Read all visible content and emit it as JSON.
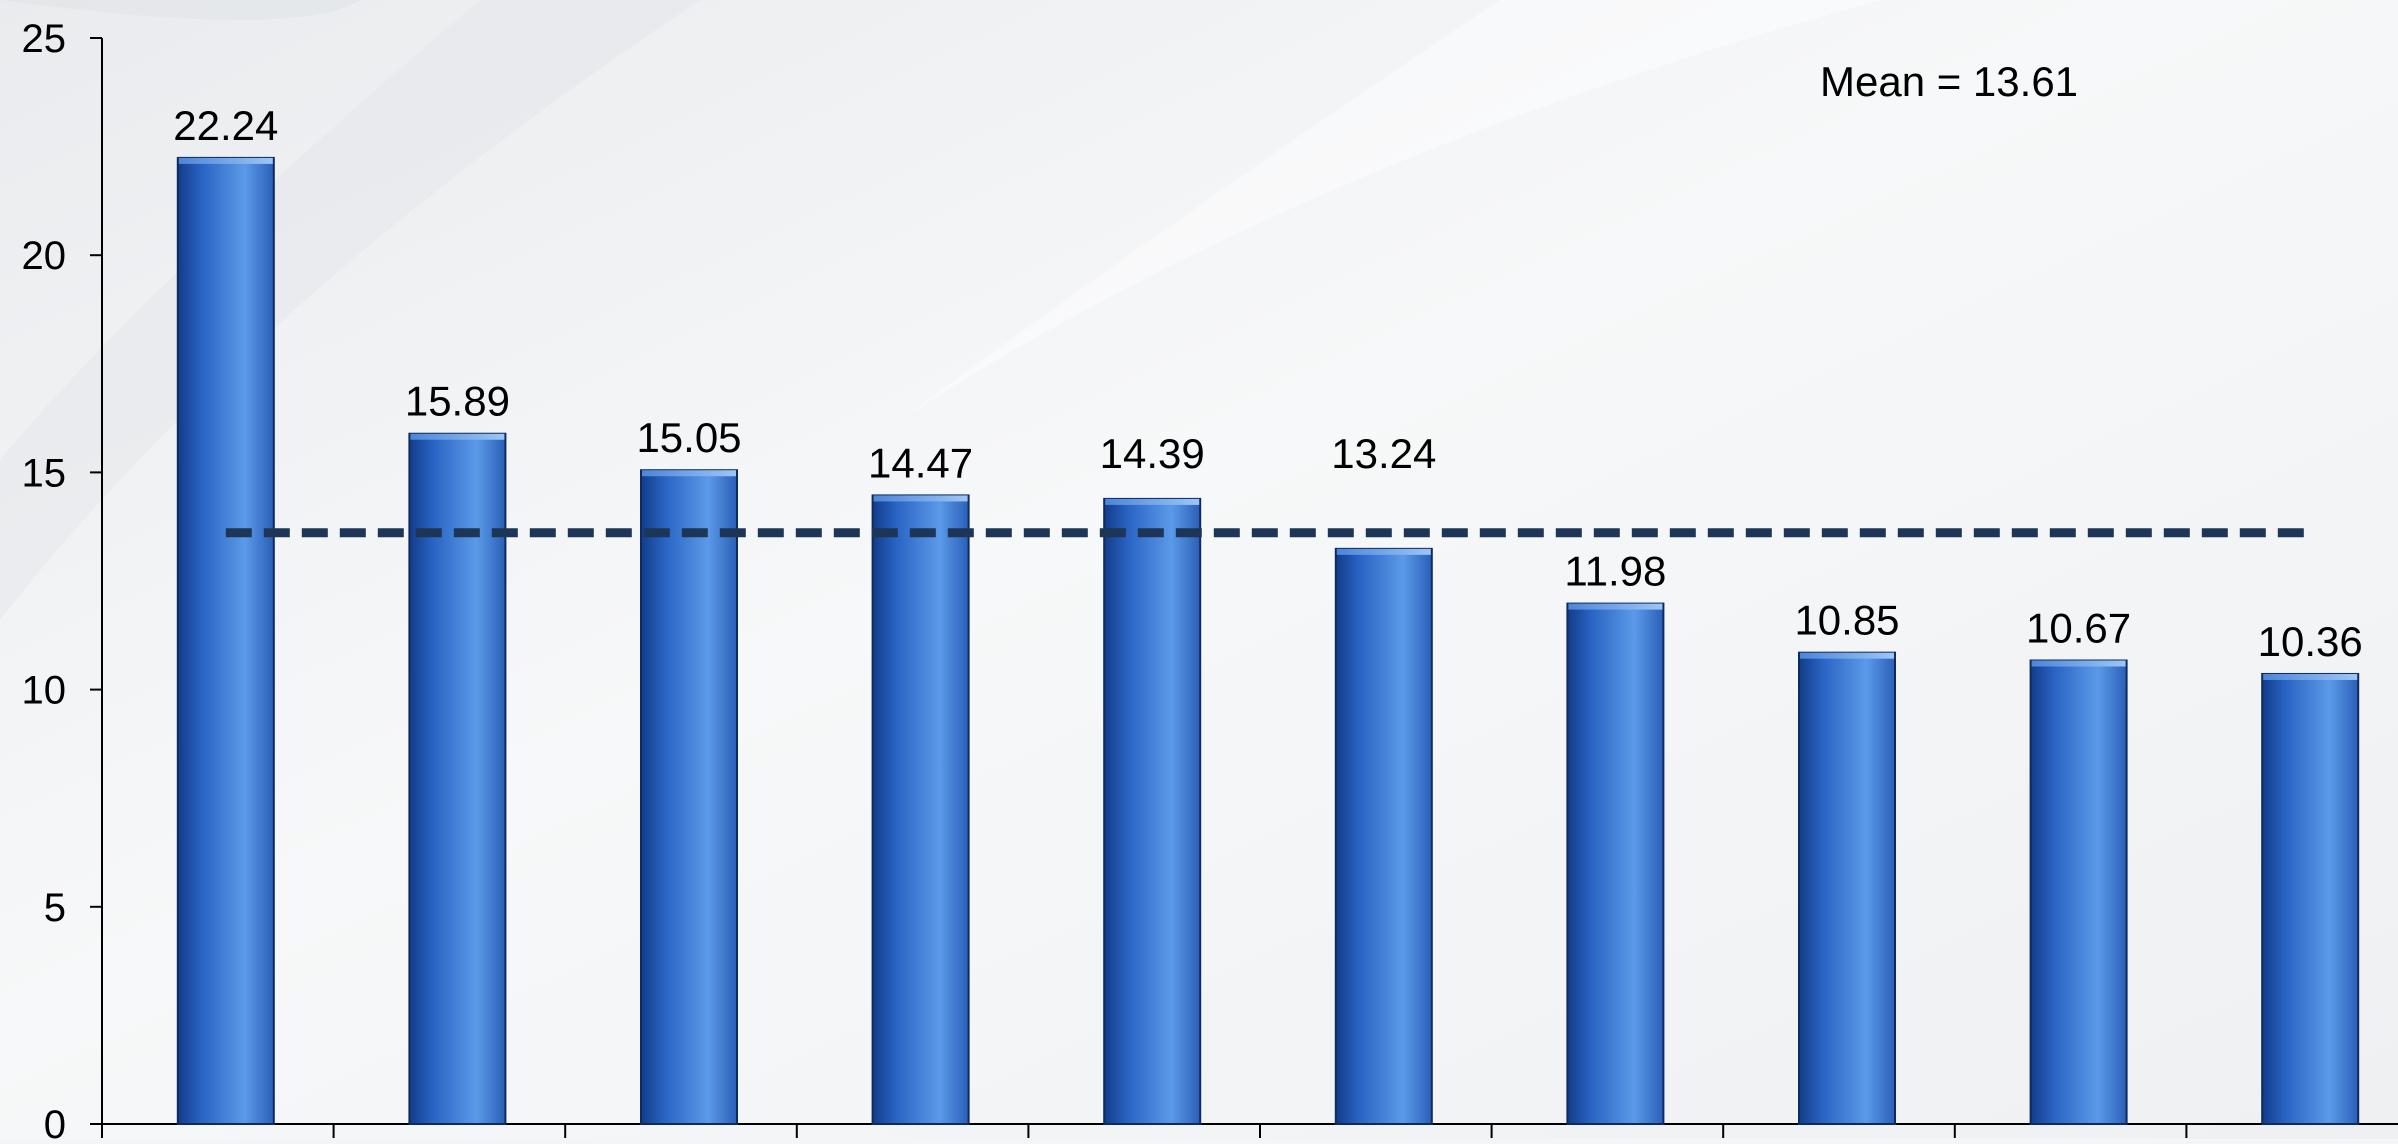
{
  "chart_data": {
    "type": "bar",
    "categories": [
      "",
      "",
      "",
      "",
      "",
      "",
      "",
      "",
      "",
      ""
    ],
    "values": [
      22.24,
      15.89,
      15.05,
      14.47,
      14.39,
      13.24,
      11.98,
      10.85,
      10.67,
      10.36
    ],
    "value_labels": [
      "22.24",
      "15.89",
      "15.05",
      "14.47",
      "14.39",
      "13.24",
      "11.98",
      "10.85",
      "10.67",
      "10.36"
    ],
    "ylim": [
      0,
      25
    ],
    "yticks": [
      0,
      5,
      10,
      15,
      20,
      25
    ],
    "ytick_labels": [
      "0",
      "5",
      "10",
      "15",
      "20",
      "25"
    ],
    "mean": 13.61,
    "mean_label": "Mean = 13.61",
    "title": "",
    "xlabel": "",
    "ylabel": "",
    "grid": false,
    "legend": "none",
    "colors": {
      "bar": "#2f6fd6",
      "bar_dark": "#123c8a",
      "bar_light": "#6aa6f2",
      "mean_line": "#1d3557",
      "axis": "#000000",
      "text": "#000000",
      "background": "#f4f5f7"
    }
  }
}
